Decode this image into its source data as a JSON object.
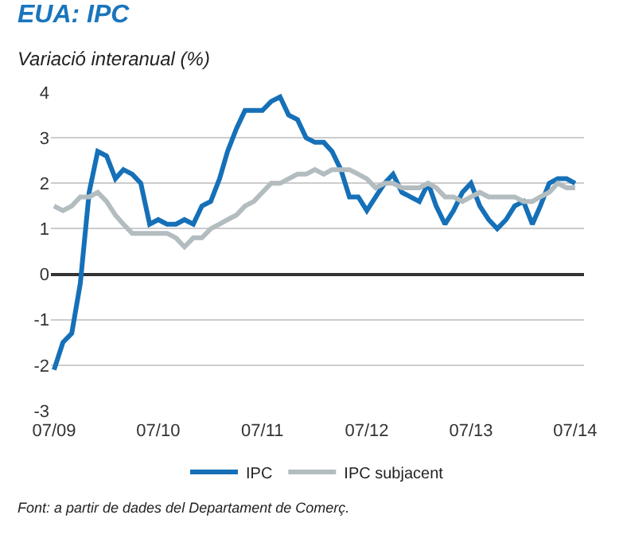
{
  "chart_data": {
    "type": "line",
    "title": "EUA: IPC",
    "subtitle": "Variació interanual (%)",
    "x": [
      "2009-07",
      "2009-08",
      "2009-09",
      "2009-10",
      "2009-11",
      "2009-12",
      "2010-01",
      "2010-02",
      "2010-03",
      "2010-04",
      "2010-05",
      "2010-06",
      "2010-07",
      "2010-08",
      "2010-09",
      "2010-10",
      "2010-11",
      "2010-12",
      "2011-01",
      "2011-02",
      "2011-03",
      "2011-04",
      "2011-05",
      "2011-06",
      "2011-07",
      "2011-08",
      "2011-09",
      "2011-10",
      "2011-11",
      "2011-12",
      "2012-01",
      "2012-02",
      "2012-03",
      "2012-04",
      "2012-05",
      "2012-06",
      "2012-07",
      "2012-08",
      "2012-09",
      "2012-10",
      "2012-11",
      "2012-12",
      "2013-01",
      "2013-02",
      "2013-03",
      "2013-04",
      "2013-05",
      "2013-06",
      "2013-07",
      "2013-08",
      "2013-09",
      "2013-10",
      "2013-11",
      "2013-12",
      "2014-01",
      "2014-02",
      "2014-03",
      "2014-04",
      "2014-05",
      "2014-06",
      "2014-07"
    ],
    "series": [
      {
        "name": "IPC",
        "color": "#1570b8",
        "values": [
          -2.1,
          -1.5,
          -1.3,
          -0.2,
          1.8,
          2.7,
          2.6,
          2.1,
          2.3,
          2.2,
          2.0,
          1.1,
          1.2,
          1.1,
          1.1,
          1.2,
          1.1,
          1.5,
          1.6,
          2.1,
          2.7,
          3.2,
          3.6,
          3.6,
          3.6,
          3.8,
          3.9,
          3.5,
          3.4,
          3.0,
          2.9,
          2.9,
          2.7,
          2.3,
          1.7,
          1.7,
          1.4,
          1.7,
          2.0,
          2.2,
          1.8,
          1.7,
          1.6,
          2.0,
          1.5,
          1.1,
          1.4,
          1.8,
          2.0,
          1.5,
          1.2,
          1.0,
          1.2,
          1.5,
          1.6,
          1.1,
          1.5,
          2.0,
          2.1,
          2.1,
          2.0
        ]
      },
      {
        "name": "IPC subjacent",
        "color": "#b3bcbf",
        "values": [
          1.5,
          1.4,
          1.5,
          1.7,
          1.7,
          1.8,
          1.6,
          1.3,
          1.1,
          0.9,
          0.9,
          0.9,
          0.9,
          0.9,
          0.8,
          0.6,
          0.8,
          0.8,
          1.0,
          1.1,
          1.2,
          1.3,
          1.5,
          1.6,
          1.8,
          2.0,
          2.0,
          2.1,
          2.2,
          2.2,
          2.3,
          2.2,
          2.3,
          2.3,
          2.3,
          2.2,
          2.1,
          1.9,
          2.0,
          2.0,
          1.9,
          1.9,
          1.9,
          2.0,
          1.9,
          1.7,
          1.7,
          1.6,
          1.7,
          1.8,
          1.7,
          1.7,
          1.7,
          1.7,
          1.6,
          1.6,
          1.7,
          1.8,
          2.0,
          1.9,
          1.9
        ]
      }
    ],
    "xlim": [
      "2009-06-20",
      "2014-08-01"
    ],
    "xticks": [
      {
        "value": "2009-07",
        "label": "07/09"
      },
      {
        "value": "2010-07",
        "label": "07/10"
      },
      {
        "value": "2011-07",
        "label": "07/11"
      },
      {
        "value": "2012-07",
        "label": "07/12"
      },
      {
        "value": "2013-07",
        "label": "07/13"
      },
      {
        "value": "2014-07",
        "label": "07/14"
      }
    ],
    "ylim": [
      -3,
      4
    ],
    "yticks": [
      -3,
      -2,
      -1,
      0,
      1,
      2,
      3,
      4
    ],
    "grid": "y",
    "legend": "bottom",
    "marker": "none",
    "line_style": "solid",
    "annotations": [
      "Font: a partir de dades del Departament de Comerç."
    ]
  }
}
